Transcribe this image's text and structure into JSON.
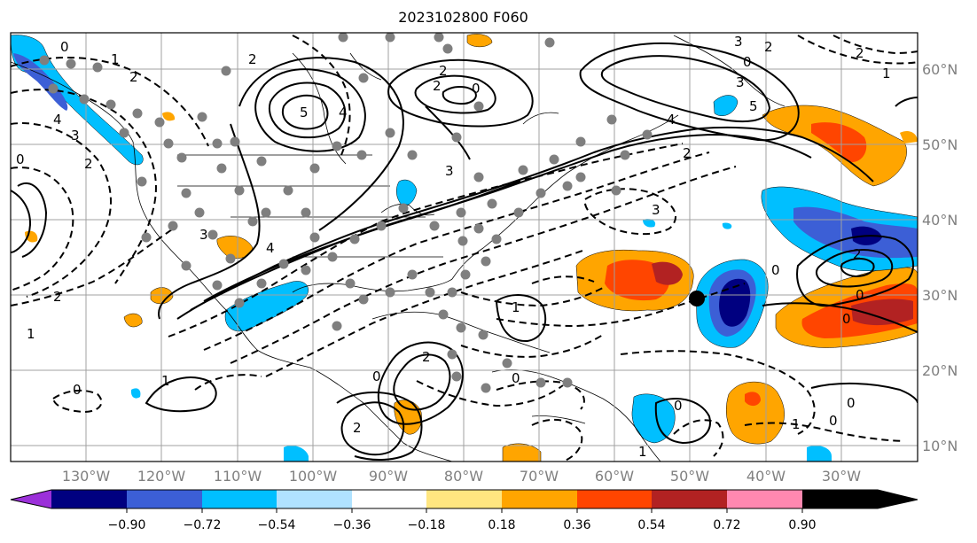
{
  "title": "2023102800 F060",
  "lon_ticks": [
    "130°W",
    "120°W",
    "110°W",
    "100°W",
    "90°W",
    "80°W",
    "70°W",
    "60°W",
    "50°W",
    "40°W",
    "30°W"
  ],
  "lat_ticks": [
    "60°N",
    "50°N",
    "40°N",
    "30°N",
    "20°N",
    "10°N"
  ],
  "colorbar": {
    "tick_labels": [
      "−0.90",
      "−0.72",
      "−0.54",
      "−0.36",
      "−0.18",
      "0.18",
      "0.36",
      "0.54",
      "0.72",
      "0.90"
    ],
    "colors": [
      "#9b30d9",
      "#000080",
      "#3c5fd6",
      "#00bfff",
      "#b0e2ff",
      "#ffffff",
      "#ffe680",
      "#ffa500",
      "#ff4500",
      "#b22222",
      "#ff88b0"
    ]
  },
  "contour_labels": [
    "0",
    "1",
    "2",
    "2",
    "0",
    "3",
    "2",
    "4",
    "5",
    "4",
    "2",
    "0",
    "3",
    "2",
    "3",
    "2",
    "4",
    "5",
    "3",
    "2",
    "3",
    "0",
    "2",
    "1",
    "0",
    "2",
    "0",
    "0",
    "2",
    "1",
    "3",
    "4",
    "0",
    "1",
    "2",
    "0",
    "1",
    "0",
    "0",
    "0",
    "2",
    "1",
    "0",
    "1"
  ],
  "marker": "low-center-dot"
}
